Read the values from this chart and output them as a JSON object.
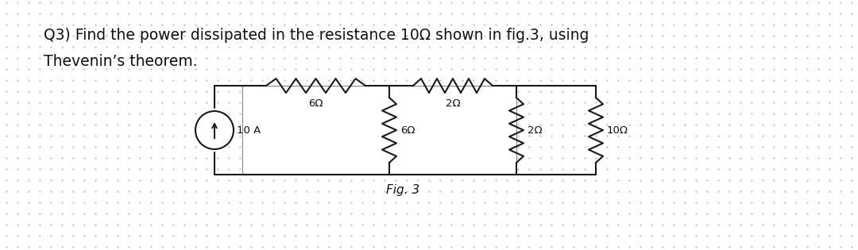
{
  "title_line1": "Q3) Find the power dissipated in the resistance 10Ω shown in fig.3, using",
  "title_line2": "Thevenin’s theorem.",
  "fig_label": "Fig. 3",
  "current_source_label": "10 A",
  "R_top_left": "6Ω",
  "R_top_right": "2Ω",
  "R_shunt_left": "6Ω",
  "R_shunt_right": "2Ω",
  "R_load": "10Ω",
  "background_color": "#ffffff",
  "dot_color": "#b0b0b0",
  "line_color": "#1a1a1a",
  "text_color": "#111111",
  "title_fontsize": 13.5,
  "label_fontsize": 9.5,
  "lw": 1.5
}
